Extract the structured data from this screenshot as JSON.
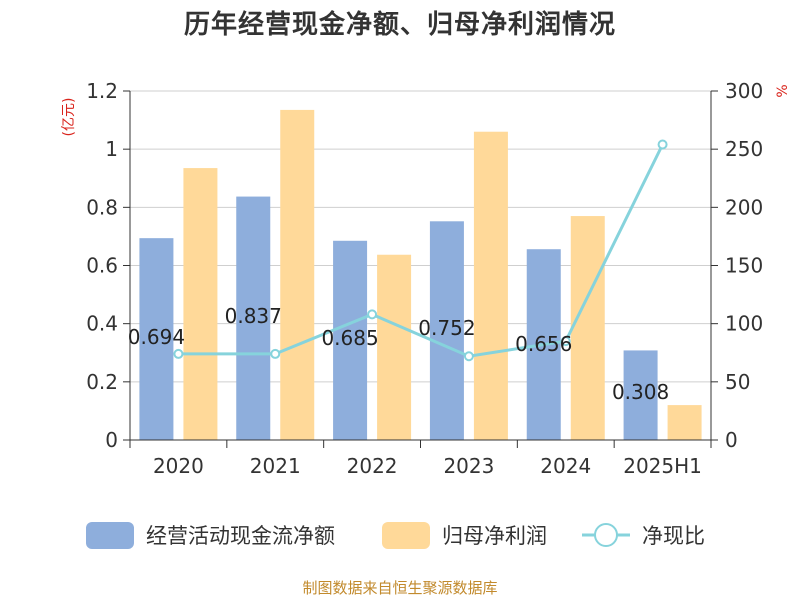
{
  "chart_data": {
    "type": "bar",
    "title": "历年经营现金净额、归母净利润情况",
    "categories": [
      "2020",
      "2021",
      "2022",
      "2023",
      "2024",
      "2025H1"
    ],
    "y_left": {
      "label": "(亿元)",
      "ylim": [
        0,
        1.2
      ],
      "ticks": [
        "0",
        "0.2",
        "0.4",
        "0.6",
        "0.8",
        "1",
        "1.2"
      ]
    },
    "y_right": {
      "label": "%",
      "ylim": [
        0,
        300
      ],
      "ticks": [
        "0",
        "50",
        "100",
        "150",
        "200",
        "250",
        "300"
      ]
    },
    "series": [
      {
        "name": "经营活动现金流净额",
        "type": "bar",
        "axis": "left",
        "color": "#8eaedc",
        "values": [
          0.694,
          0.837,
          0.685,
          0.752,
          0.656,
          0.308
        ],
        "labels": [
          "0.694",
          "0.837",
          "0.685",
          "0.752",
          "0.656",
          "0.308"
        ]
      },
      {
        "name": "归母净利润",
        "type": "bar",
        "axis": "left",
        "color": "#ffd999",
        "values": [
          0.935,
          1.135,
          0.637,
          1.06,
          0.77,
          0.12
        ]
      },
      {
        "name": "净现比",
        "type": "line",
        "axis": "right",
        "color": "#86d3dc",
        "values": [
          74,
          74,
          108,
          72,
          85,
          254
        ]
      }
    ],
    "grid": true,
    "legend_position": "bottom"
  },
  "footer": {
    "source": "制图数据来自恒生聚源数据库"
  }
}
